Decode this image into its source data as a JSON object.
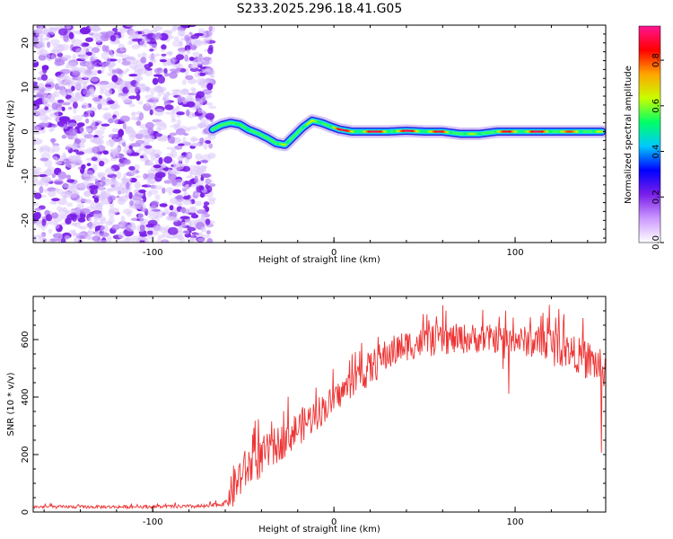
{
  "title": "S233.2025.296.18.41.G05",
  "chart_data": [
    {
      "type": "heatmap",
      "title": "S233.2025.296.18.41.G05",
      "xlabel": "Height of straight line (km)",
      "ylabel": "Frequency (Hz)",
      "xlim": [
        -166,
        150
      ],
      "ylim": [
        -25,
        24
      ],
      "xticks": [
        -100,
        0,
        100
      ],
      "yticks": [
        -20,
        -10,
        0,
        10,
        20
      ],
      "noise_region_x": [
        -166,
        -67
      ],
      "ridge": {
        "x": [
          -67,
          -62,
          -57,
          -52,
          -47,
          -42,
          -37,
          -32,
          -27,
          -22,
          -17,
          -12,
          -7,
          -2,
          3,
          10,
          20,
          30,
          40,
          50,
          60,
          70,
          80,
          90,
          100,
          110,
          120,
          130,
          140,
          148
        ],
        "freq": [
          0.5,
          1.5,
          2.0,
          1.6,
          0.4,
          -0.4,
          -1.4,
          -2.6,
          -3.0,
          -1.0,
          1.0,
          2.5,
          2.0,
          1.2,
          0.5,
          0.0,
          0.0,
          0.0,
          0.2,
          0.0,
          0.0,
          -0.5,
          -0.5,
          0.0,
          0.0,
          0.0,
          0.0,
          0.0,
          0.0,
          0.0
        ],
        "amplitude": [
          0.35,
          0.5,
          0.75,
          0.55,
          0.45,
          0.55,
          0.5,
          0.4,
          0.75,
          0.5,
          0.55,
          0.6,
          0.7,
          0.8,
          0.85,
          0.9,
          0.95,
          0.9,
          0.85,
          0.95,
          0.8,
          0.6,
          0.55,
          0.7,
          0.95,
          0.9,
          0.85,
          0.75,
          0.7,
          0.6
        ]
      },
      "colorbar": {
        "label": "Normalized spectral amplitude",
        "range": [
          0,
          0.95
        ],
        "ticks": [
          0.0,
          0.2,
          0.4,
          0.6,
          0.8
        ],
        "colormap": [
          "#ffffff",
          "#cc99ff",
          "#7a1ee8",
          "#0000ff",
          "#00c8ff",
          "#00ff66",
          "#c8ff00",
          "#ffa500",
          "#ff0000",
          "#ff1493"
        ]
      }
    },
    {
      "type": "line",
      "xlabel": "Height of straight line (km)",
      "ylabel": "SNR (10 * v/v)",
      "xlim": [
        -166,
        150
      ],
      "ylim": [
        0,
        750
      ],
      "xticks": [
        -100,
        0,
        100
      ],
      "yticks": [
        0,
        200,
        400,
        600
      ],
      "color": "#ee3333",
      "envelope": {
        "x": [
          -166,
          -120,
          -70,
          -60,
          -55,
          -50,
          -40,
          -30,
          -20,
          -10,
          0,
          10,
          20,
          30,
          40,
          60,
          80,
          100,
          120,
          130,
          140,
          150
        ],
        "mean": [
          18,
          18,
          20,
          30,
          90,
          140,
          190,
          240,
          290,
          340,
          390,
          450,
          500,
          550,
          580,
          600,
          605,
          600,
          580,
          560,
          530,
          500
        ],
        "peak": [
          30,
          30,
          35,
          50,
          280,
          300,
          350,
          380,
          430,
          470,
          500,
          560,
          640,
          680,
          700,
          720,
          720,
          700,
          740,
          690,
          680,
          660
        ]
      }
    }
  ]
}
